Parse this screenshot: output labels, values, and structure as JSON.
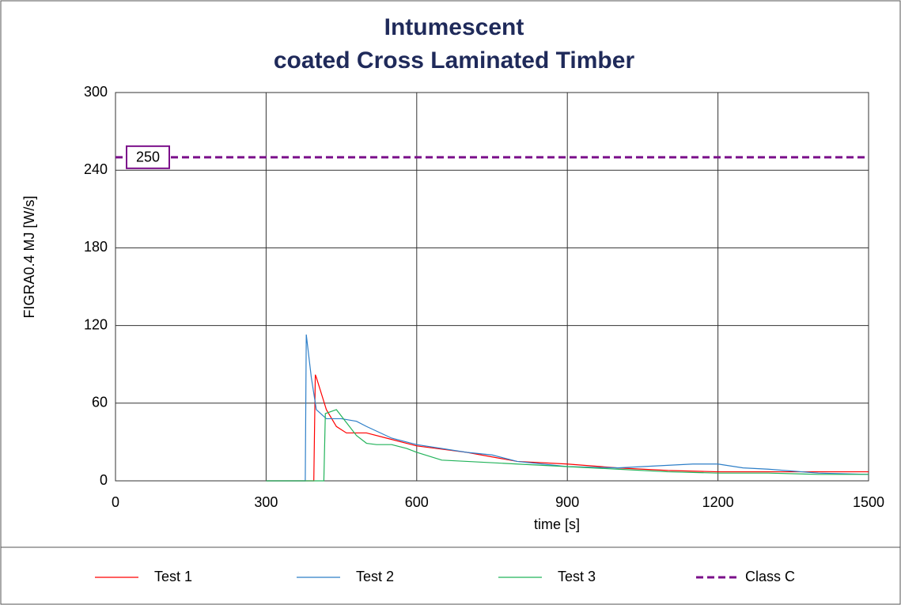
{
  "chart_data": {
    "type": "line",
    "title": [
      "Intumescent",
      "coated Cross Laminated Timber"
    ],
    "xlabel": "time [s]",
    "ylabel": "FIGRA0.4 MJ [W/s]",
    "xlim": [
      0,
      1500
    ],
    "ylim": [
      0,
      300
    ],
    "xticks": [
      0,
      300,
      600,
      900,
      1200,
      1500
    ],
    "yticks": [
      0,
      60,
      120,
      180,
      240,
      300
    ],
    "grid": true,
    "legend": "bottom",
    "series": [
      {
        "name": "Test 1",
        "color": "#ff0000",
        "linestyle": "solid",
        "x": [
          300,
          395,
          398,
          400,
          420,
          440,
          460,
          500,
          540,
          600,
          700,
          800,
          900,
          1000,
          1100,
          1200,
          1300,
          1500
        ],
        "values": [
          0,
          0,
          82,
          80,
          55,
          42,
          37,
          37,
          33,
          27,
          22,
          15,
          13,
          10,
          8,
          7,
          7,
          7
        ]
      },
      {
        "name": "Test 2",
        "color": "#2e7fc8",
        "linestyle": "solid",
        "x": [
          300,
          378,
          380,
          390,
          400,
          420,
          450,
          480,
          500,
          550,
          600,
          700,
          750,
          800,
          900,
          1000,
          1100,
          1150,
          1200,
          1250,
          1300,
          1400,
          1500
        ],
        "values": [
          0,
          0,
          113,
          80,
          55,
          48,
          48,
          46,
          42,
          33,
          28,
          22,
          20,
          15,
          11,
          10,
          12,
          13,
          13,
          10,
          9,
          6,
          5
        ]
      },
      {
        "name": "Test 3",
        "color": "#22b35a",
        "linestyle": "solid",
        "x": [
          300,
          415,
          418,
          440,
          460,
          480,
          500,
          520,
          550,
          580,
          600,
          650,
          700,
          800,
          900,
          1000,
          1100,
          1200,
          1300,
          1400,
          1500
        ],
        "values": [
          0,
          0,
          52,
          55,
          45,
          35,
          29,
          28,
          28,
          25,
          22,
          16,
          15,
          13,
          11,
          9,
          7,
          6,
          6,
          5,
          5
        ]
      },
      {
        "name": "Class C",
        "color": "#7b0f8a",
        "linestyle": "dashed",
        "x": [
          0,
          1500
        ],
        "values": [
          250,
          250
        ]
      }
    ]
  }
}
